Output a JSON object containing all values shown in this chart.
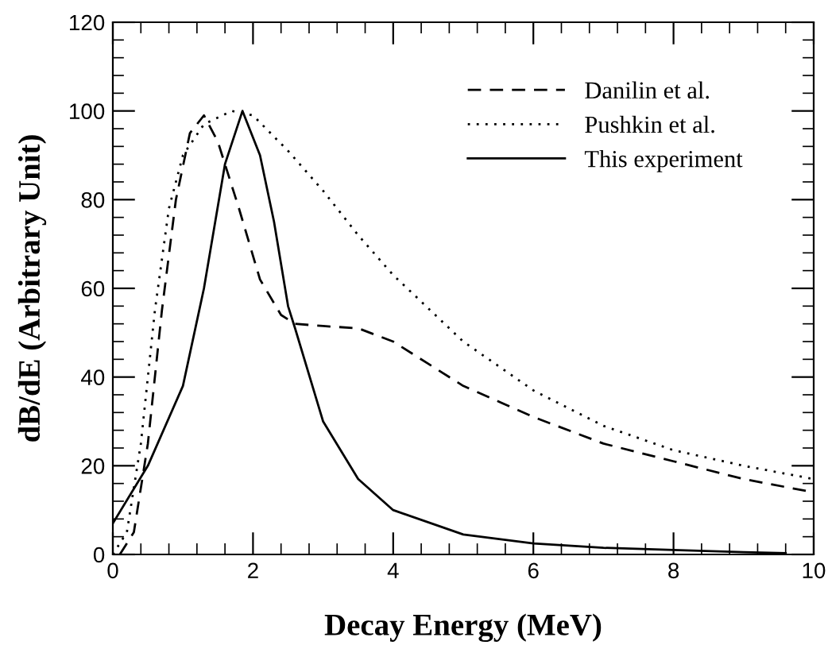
{
  "chart_data": {
    "type": "line",
    "xlabel": "Decay Energy (MeV)",
    "ylabel": "dB/dE (Arbitrary Unit)",
    "xlim": [
      0,
      10
    ],
    "ylim": [
      0,
      120
    ],
    "xticks": [
      0,
      2,
      4,
      6,
      8,
      10
    ],
    "yticks": [
      0,
      20,
      40,
      60,
      80,
      100,
      120
    ],
    "grid": false,
    "legend": "top right",
    "marker": "none",
    "series": [
      {
        "name": "Danilin et al.",
        "color": "#000000",
        "line_style": "dashed",
        "x": [
          0.1,
          0.3,
          0.5,
          0.7,
          0.9,
          1.1,
          1.3,
          1.5,
          1.8,
          2.1,
          2.4,
          2.6,
          3,
          3.5,
          4,
          4.5,
          5,
          6,
          7,
          8,
          9,
          10
        ],
        "values": [
          0,
          5,
          25,
          55,
          80,
          95,
          99,
          93,
          78,
          62,
          54,
          52,
          51.5,
          51,
          48,
          43,
          38,
          31,
          25,
          21,
          17,
          14
        ]
      },
      {
        "name": "Pushkin et al.",
        "color": "#000000",
        "line_style": "dotted",
        "x": [
          0,
          0.2,
          0.4,
          0.6,
          0.8,
          1,
          1.3,
          1.7,
          2,
          2.5,
          3,
          3.5,
          4,
          5,
          6,
          7,
          8,
          9,
          10
        ],
        "values": [
          0,
          5,
          25,
          55,
          78,
          90,
          97,
          100,
          99,
          91,
          82,
          72,
          63,
          48,
          37,
          29,
          23.5,
          20,
          17
        ]
      },
      {
        "name": "This experiment",
        "color": "#000000",
        "line_style": "solid",
        "x": [
          0,
          0.5,
          1,
          1.3,
          1.6,
          1.85,
          2.1,
          2.3,
          2.5,
          2.6,
          3,
          3.5,
          4,
          5,
          6,
          7,
          8,
          9,
          9.6
        ],
        "values": [
          7,
          20,
          38,
          60,
          88,
          100,
          90,
          75,
          56,
          51,
          30,
          17,
          10,
          4.5,
          2.5,
          1.5,
          1,
          0.5,
          0.3
        ]
      }
    ]
  }
}
